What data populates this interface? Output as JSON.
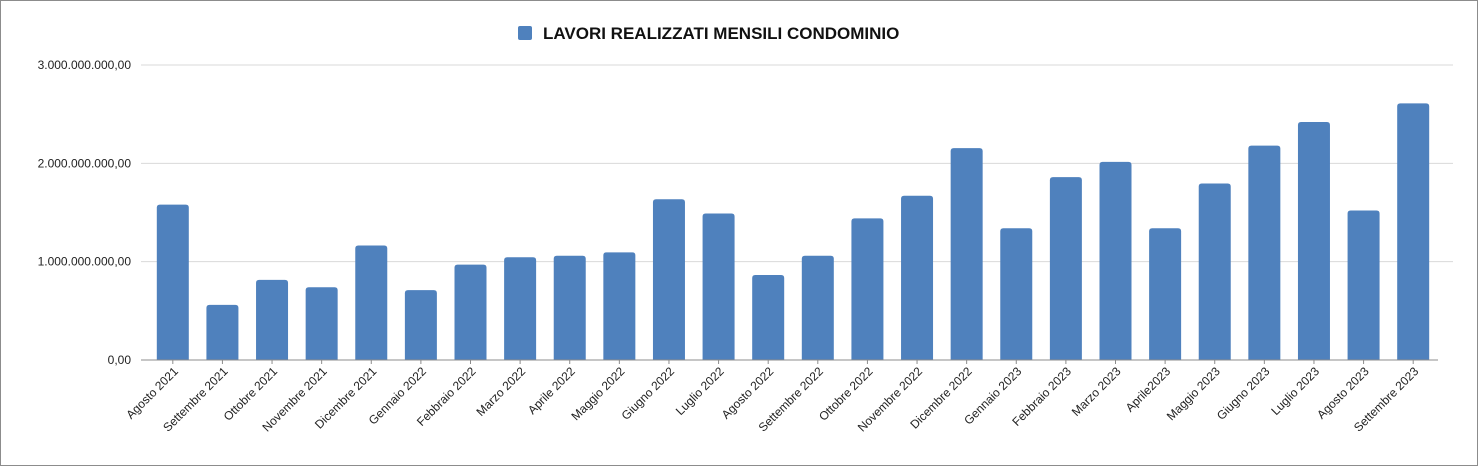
{
  "chart_data": {
    "type": "bar",
    "title": "LAVORI REALIZZATI MENSILI CONDOMINIO",
    "legend_position": "top-center",
    "bar_color": "#4f81bd",
    "grid": true,
    "ylim": [
      0,
      3000000000
    ],
    "yticks": [
      {
        "value": 0,
        "label": "0,00"
      },
      {
        "value": 1000000000,
        "label": "1.000.000.000,00"
      },
      {
        "value": 2000000000,
        "label": "2.000.000.000,00"
      },
      {
        "value": 3000000000,
        "label": "3.000.000.000,00"
      }
    ],
    "series": [
      {
        "name": "LAVORI REALIZZATI MENSILI CONDOMINIO",
        "values": [
          1580000000,
          560000000,
          815000000,
          740000000,
          1165000000,
          710000000,
          970000000,
          1045000000,
          1060000000,
          1095000000,
          1635000000,
          1490000000,
          865000000,
          1060000000,
          1440000000,
          1670000000,
          2155000000,
          1340000000,
          1860000000,
          2015000000,
          1340000000,
          1795000000,
          2180000000,
          2420000000,
          1520000000,
          2610000000
        ]
      }
    ],
    "categories": [
      "Agosto 2021",
      "Settembre 2021",
      "Ottobre 2021",
      "Novembre 2021",
      "Dicembre 2021",
      "Gennaio 2022",
      "Febbraio 2022",
      "Marzo 2022",
      "Aprile 2022",
      "Maggio 2022",
      "Giugno 2022",
      "Luglio 2022",
      "Agosto 2022",
      "Settembre 2022",
      "Ottobre 2022",
      "Novembre 2022",
      "Dicembre 2022",
      "Gennaio 2023",
      "Febbraio 2023",
      "Marzo 2023",
      "Aprile2023",
      "Maggio 2023",
      "Giugno 2023",
      "Luglio 2023",
      "Agosto 2023",
      "Settembre 2023"
    ]
  }
}
